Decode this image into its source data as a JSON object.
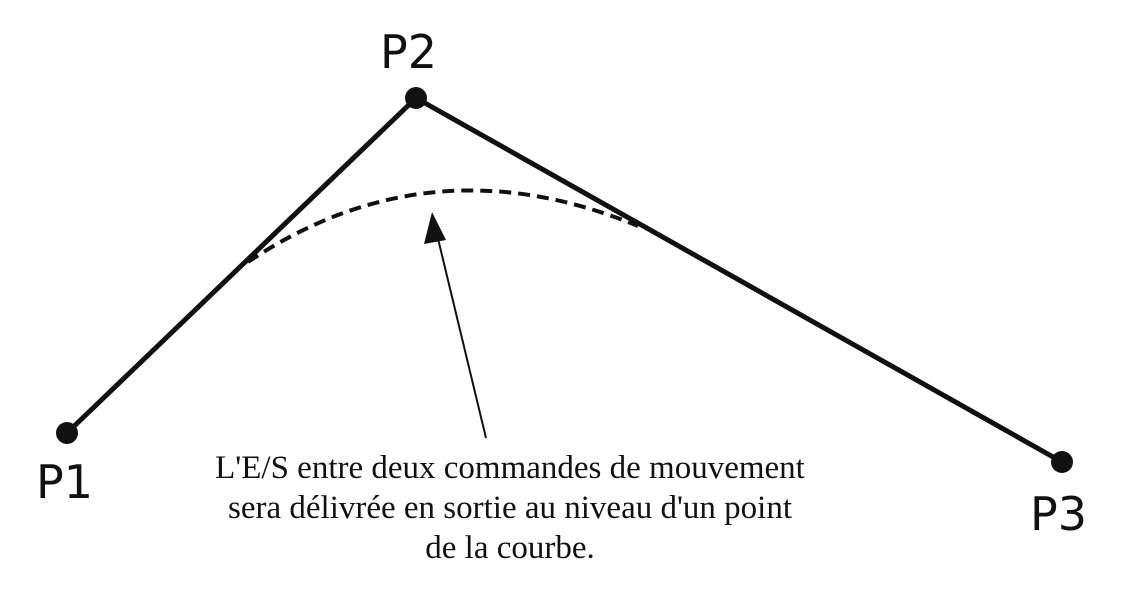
{
  "points": {
    "p1": "P1",
    "p2": "P2",
    "p3": "P3"
  },
  "caption": {
    "line1": "L'E/S entre deux commandes de mouvement",
    "line2": "sera délivrée en sortie au niveau d'un point",
    "line3": "de la courbe."
  },
  "colors": {
    "stroke": "#111111",
    "background": "#ffffff"
  }
}
